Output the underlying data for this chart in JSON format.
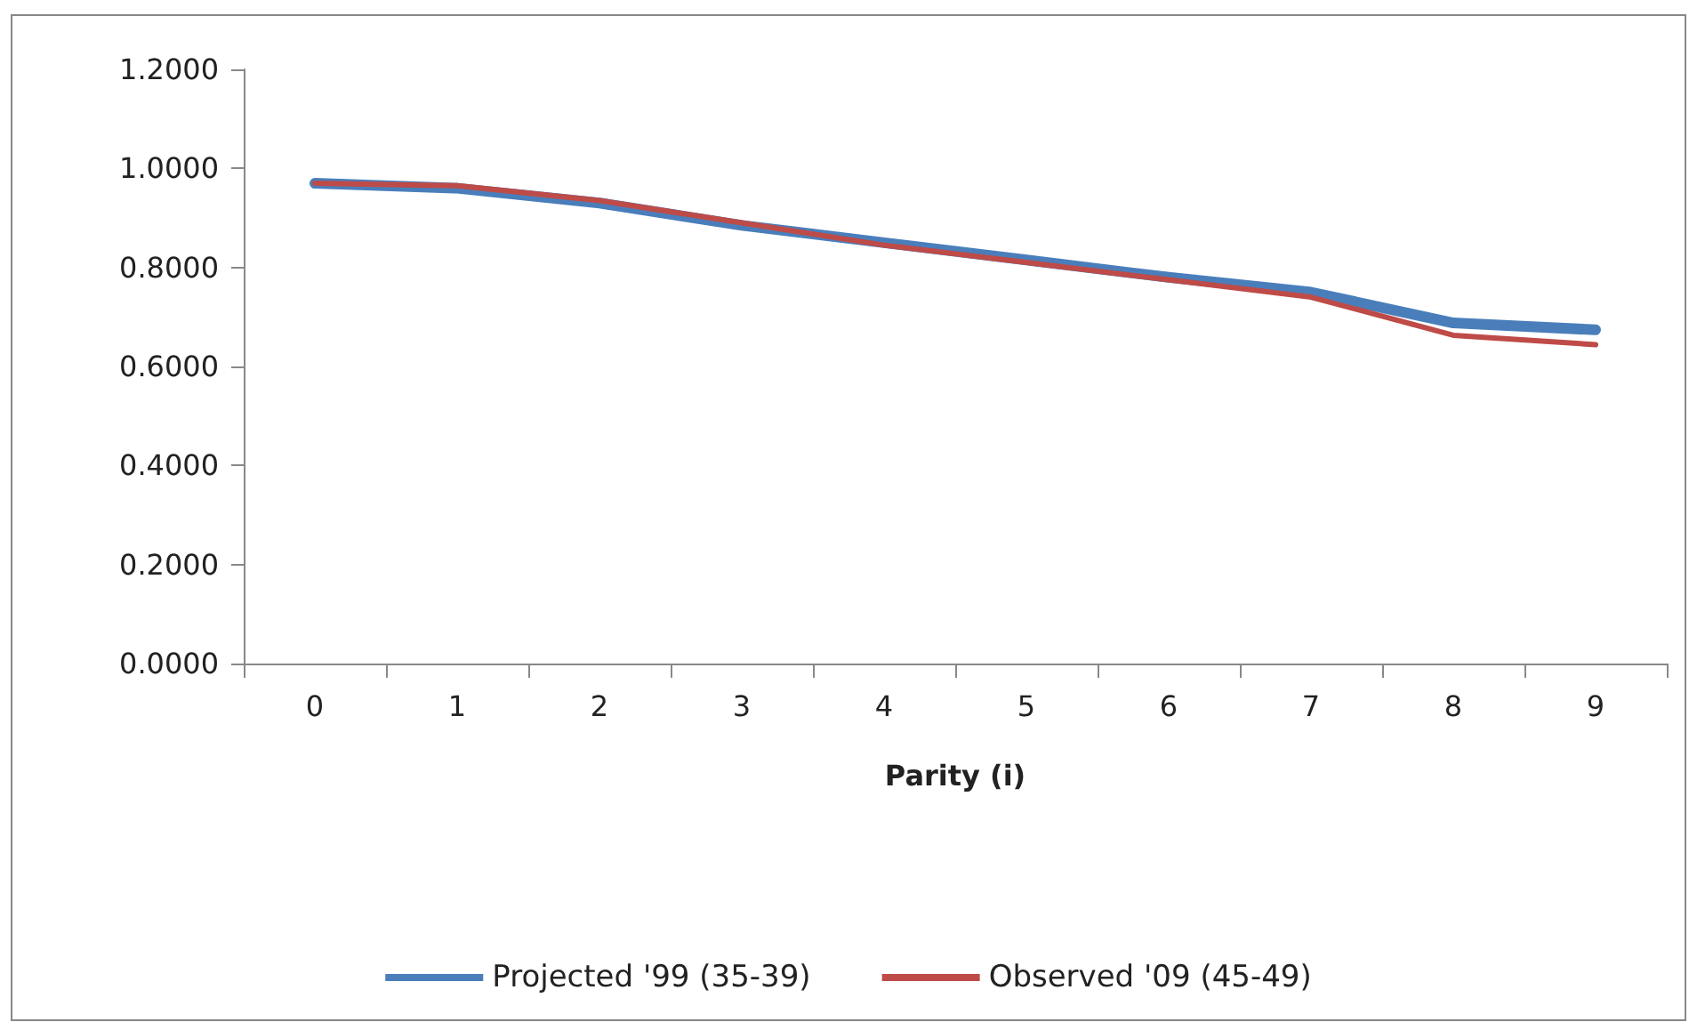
{
  "chart_data": {
    "type": "line",
    "xlabel": "Parity (i)",
    "categories": [
      "0",
      "1",
      "2",
      "3",
      "4",
      "5",
      "6",
      "7",
      "8",
      "9"
    ],
    "series": [
      {
        "name": "Projected '99 (35-39)",
        "color": "#4a7ebb",
        "values": [
          0.97,
          0.96,
          0.93,
          0.885,
          0.85,
          0.815,
          0.78,
          0.75,
          0.688,
          0.674
        ]
      },
      {
        "name": "Observed '09 (45-49)",
        "color": "#be4b48",
        "values": [
          0.97,
          0.965,
          0.935,
          0.89,
          0.845,
          0.81,
          0.775,
          0.74,
          0.663,
          0.644
        ]
      }
    ],
    "ylim": [
      0,
      1.2
    ],
    "yticks": [
      {
        "value": 0,
        "label": "0.0000"
      },
      {
        "value": 0.2,
        "label": "0.2000"
      },
      {
        "value": 0.4,
        "label": "0.4000"
      },
      {
        "value": 0.6,
        "label": "0.6000"
      },
      {
        "value": 0.8,
        "label": "0.8000"
      },
      {
        "value": 1,
        "label": "1.0000"
      },
      {
        "value": 1.2,
        "label": "1.2000"
      }
    ],
    "grid": false,
    "legend": "bottom",
    "marker": "none",
    "line_style": "solid"
  }
}
